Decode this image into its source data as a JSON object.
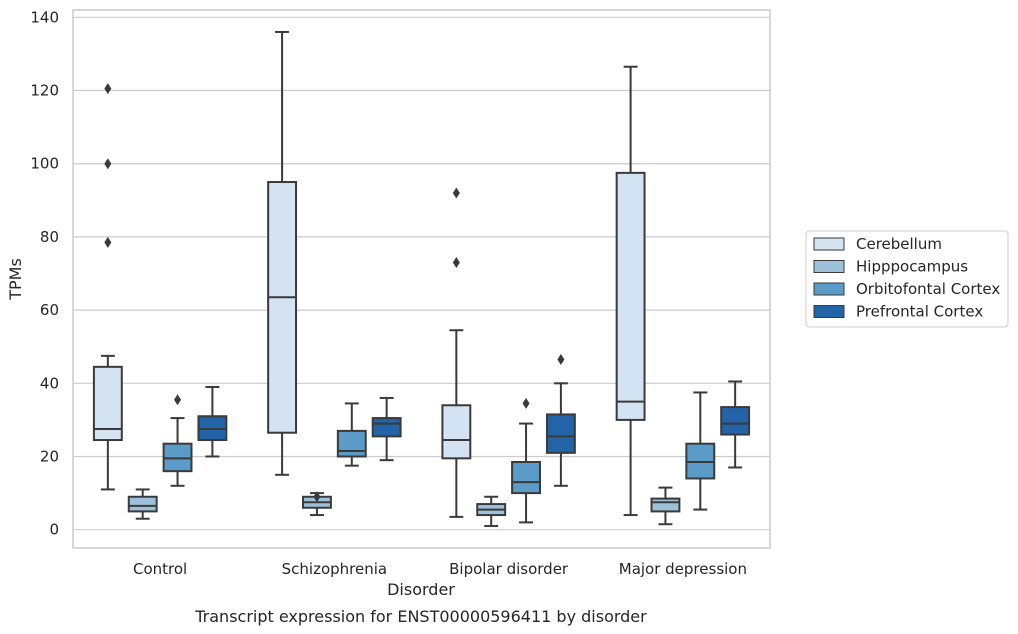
{
  "chart_data": {
    "type": "box",
    "title": "",
    "caption": "Transcript expression for ENST00000596411 by disorder",
    "xlabel": "Disorder",
    "ylabel": "TPMs",
    "ylim": [
      -5,
      142
    ],
    "yticks": [
      0,
      20,
      40,
      60,
      80,
      100,
      120,
      140
    ],
    "grid": "horizontal",
    "legend_position": "right",
    "categories": [
      "Control",
      "Schizophrenia",
      "Bipolar disorder",
      "Major depression"
    ],
    "series": [
      {
        "name": "Cerebellum",
        "color": "#d4e3f2",
        "boxes": [
          {
            "whisker_low": 11,
            "q1": 24.5,
            "median": 27.5,
            "q3": 44.5,
            "whisker_high": 47.5,
            "outliers": [
              120.5,
              100,
              78.5
            ]
          },
          {
            "whisker_low": 15,
            "q1": 26.5,
            "median": 63.5,
            "q3": 95,
            "whisker_high": 136,
            "outliers": []
          },
          {
            "whisker_low": 3.5,
            "q1": 19.5,
            "median": 24.5,
            "q3": 34,
            "whisker_high": 54.5,
            "outliers": [
              92,
              73
            ]
          },
          {
            "whisker_low": 4,
            "q1": 30,
            "median": 35,
            "q3": 97.5,
            "whisker_high": 126.5,
            "outliers": []
          }
        ]
      },
      {
        "name": "Hipppocampus",
        "color": "#9dc1db",
        "boxes": [
          {
            "whisker_low": 3,
            "q1": 5,
            "median": 6.5,
            "q3": 9,
            "whisker_high": 11,
            "outliers": []
          },
          {
            "whisker_low": 4,
            "q1": 6,
            "median": 7.5,
            "q3": 9,
            "whisker_high": 10,
            "outliers": [
              9
            ]
          },
          {
            "whisker_low": 1,
            "q1": 4,
            "median": 5.5,
            "q3": 7,
            "whisker_high": 9,
            "outliers": []
          },
          {
            "whisker_low": 1.5,
            "q1": 5,
            "median": 7.5,
            "q3": 8.5,
            "whisker_high": 11.5,
            "outliers": []
          }
        ]
      },
      {
        "name": "Orbitofontal Cortex",
        "color": "#5a9bc8",
        "boxes": [
          {
            "whisker_low": 12,
            "q1": 16,
            "median": 19.5,
            "q3": 23.5,
            "whisker_high": 30.5,
            "outliers": [
              35.5
            ]
          },
          {
            "whisker_low": 17.5,
            "q1": 20,
            "median": 21.5,
            "q3": 27,
            "whisker_high": 34.5,
            "outliers": []
          },
          {
            "whisker_low": 2,
            "q1": 10,
            "median": 13,
            "q3": 18.5,
            "whisker_high": 29,
            "outliers": [
              34.5
            ]
          },
          {
            "whisker_low": 5.5,
            "q1": 14,
            "median": 18.5,
            "q3": 23.5,
            "whisker_high": 37.5,
            "outliers": []
          }
        ]
      },
      {
        "name": "Prefrontal Cortex",
        "color": "#2363a8",
        "boxes": [
          {
            "whisker_low": 20,
            "q1": 24.5,
            "median": 27.5,
            "q3": 31,
            "whisker_high": 39,
            "outliers": []
          },
          {
            "whisker_low": 19,
            "q1": 25.5,
            "median": 29,
            "q3": 30.5,
            "whisker_high": 36,
            "outliers": []
          },
          {
            "whisker_low": 12,
            "q1": 21,
            "median": 25.5,
            "q3": 31.5,
            "whisker_high": 40,
            "outliers": [
              46.5
            ]
          },
          {
            "whisker_low": 17,
            "q1": 26,
            "median": 29,
            "q3": 33.5,
            "whisker_high": 40.5,
            "outliers": []
          }
        ]
      }
    ]
  }
}
